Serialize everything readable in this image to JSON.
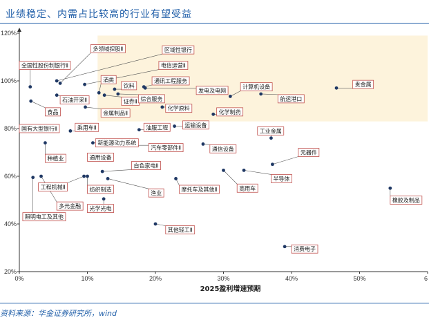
{
  "header": {
    "title": "业绩稳定、内需占比较高的行业有望受益"
  },
  "footer": {
    "source": "资料来源：华金证券研究所，wind"
  },
  "colors": {
    "accent": "#1f5ea8",
    "point": "#1f3864",
    "label_border": "#c0504d",
    "highlight": "#fdf3dc"
  },
  "chart_data": {
    "type": "scatter",
    "title": "",
    "xlabel": "2025盈利增速预期",
    "ylabel": "",
    "xlim": [
      0,
      0.6
    ],
    "ylim": [
      0.2,
      1.2
    ],
    "x_ticks": [
      "0%",
      "10%",
      "20%",
      "30%",
      "40%",
      "50%",
      "6"
    ],
    "y_ticks": [
      "20%",
      "40%",
      "60%",
      "80%",
      "100%",
      "120%"
    ],
    "grid": false,
    "highlight_region": {
      "x": [
        0.115,
        0.6
      ],
      "y": [
        0.83,
        1.19
      ]
    },
    "points": [
      {
        "name": "全国性股份制银行Ⅱ",
        "x": 0.016,
        "y": 0.975,
        "lx": 0.0,
        "ly": 1.065
      },
      {
        "name": "多领域控股Ⅱ",
        "x": 0.06,
        "y": 0.99,
        "lx": 0.105,
        "ly": 1.135
      },
      {
        "name": "区域性银行",
        "x": 0.055,
        "y": 1.0,
        "lx": 0.21,
        "ly": 1.13
      },
      {
        "name": "电信运营Ⅱ",
        "x": 0.096,
        "y": 0.985,
        "lx": 0.205,
        "ly": 1.065
      },
      {
        "name": "酒类",
        "x": 0.117,
        "y": 0.95,
        "lx": 0.12,
        "ly": 1.005
      },
      {
        "name": "饮料",
        "x": 0.14,
        "y": 0.965,
        "lx": 0.15,
        "ly": 0.98
      },
      {
        "name": "通讯工程服务",
        "x": 0.183,
        "y": 0.975,
        "lx": 0.195,
        "ly": 1.0
      },
      {
        "name": "发电及电网",
        "x": 0.185,
        "y": 0.97,
        "lx": 0.26,
        "ly": 0.96
      },
      {
        "name": "计算机设备",
        "x": 0.31,
        "y": 0.935,
        "lx": 0.325,
        "ly": 0.975
      },
      {
        "name": "贵金属",
        "x": 0.466,
        "y": 0.97,
        "lx": 0.49,
        "ly": 0.985
      },
      {
        "name": "石油开采Ⅱ",
        "x": 0.055,
        "y": 0.94,
        "lx": 0.06,
        "ly": 0.92
      },
      {
        "name": "证券Ⅱ",
        "x": 0.125,
        "y": 0.94,
        "lx": 0.15,
        "ly": 0.915
      },
      {
        "name": "综合服务",
        "x": 0.145,
        "y": 0.945,
        "lx": 0.175,
        "ly": 0.925
      },
      {
        "name": "航运港口",
        "x": 0.355,
        "y": 0.945,
        "lx": 0.38,
        "ly": 0.925
      },
      {
        "name": "金属制品Ⅱ",
        "x": 0.097,
        "y": 0.89,
        "lx": 0.12,
        "ly": 0.865
      },
      {
        "name": "化学原料",
        "x": 0.21,
        "y": 0.89,
        "lx": 0.215,
        "ly": 0.885
      },
      {
        "name": "化学制药",
        "x": 0.285,
        "y": 0.86,
        "lx": 0.29,
        "ly": 0.87
      },
      {
        "name": "食品",
        "x": 0.017,
        "y": 0.915,
        "lx": 0.038,
        "ly": 0.87
      },
      {
        "name": "国有大型银行Ⅱ",
        "x": 0.04,
        "y": 0.8,
        "lx": 0.0,
        "ly": 0.8
      },
      {
        "name": "乘用车Ⅱ",
        "x": 0.075,
        "y": 0.79,
        "lx": 0.082,
        "ly": 0.805
      },
      {
        "name": "油服工程",
        "x": 0.176,
        "y": 0.795,
        "lx": 0.183,
        "ly": 0.805
      },
      {
        "name": "运输设备",
        "x": 0.228,
        "y": 0.81,
        "lx": 0.24,
        "ly": 0.815
      },
      {
        "name": "工业金属",
        "x": 0.37,
        "y": 0.76,
        "lx": 0.35,
        "ly": 0.79
      },
      {
        "name": "新能源动力系统",
        "x": 0.108,
        "y": 0.74,
        "lx": 0.112,
        "ly": 0.74
      },
      {
        "name": "汽车零部件Ⅱ",
        "x": 0.17,
        "y": 0.73,
        "lx": 0.19,
        "ly": 0.72
      },
      {
        "name": "通信设备",
        "x": 0.27,
        "y": 0.735,
        "lx": 0.28,
        "ly": 0.715
      },
      {
        "name": "元器件",
        "x": 0.372,
        "y": 0.65,
        "lx": 0.41,
        "ly": 0.7
      },
      {
        "name": "种植业",
        "x": 0.038,
        "y": 0.74,
        "lx": 0.038,
        "ly": 0.675
      },
      {
        "name": "通用设备",
        "x": 0.107,
        "y": 0.68,
        "lx": 0.1,
        "ly": 0.68
      },
      {
        "name": "白色家电Ⅱ",
        "x": 0.122,
        "y": 0.62,
        "lx": 0.165,
        "ly": 0.645
      },
      {
        "name": "工程机械Ⅱ",
        "x": 0.095,
        "y": 0.6,
        "lx": 0.028,
        "ly": 0.555
      },
      {
        "name": "纺织制造",
        "x": 0.1,
        "y": 0.6,
        "lx": 0.1,
        "ly": 0.545
      },
      {
        "name": "摩托车及其他Ⅱ",
        "x": 0.23,
        "y": 0.59,
        "lx": 0.235,
        "ly": 0.545
      },
      {
        "name": "商用车",
        "x": 0.3,
        "y": 0.625,
        "lx": 0.32,
        "ly": 0.55
      },
      {
        "name": "半导体",
        "x": 0.33,
        "y": 0.625,
        "lx": 0.37,
        "ly": 0.59
      },
      {
        "name": "多元金融",
        "x": 0.032,
        "y": 0.6,
        "lx": 0.055,
        "ly": 0.475
      },
      {
        "name": "渔业",
        "x": 0.13,
        "y": 0.59,
        "lx": 0.19,
        "ly": 0.53
      },
      {
        "name": "光学光电",
        "x": 0.124,
        "y": 0.505,
        "lx": 0.1,
        "ly": 0.465
      },
      {
        "name": "照明电工及其他",
        "x": 0.02,
        "y": 0.595,
        "lx": 0.005,
        "ly": 0.43
      },
      {
        "name": "橡胶及制品",
        "x": 0.545,
        "y": 0.55,
        "lx": 0.545,
        "ly": 0.5
      },
      {
        "name": "其他轻工Ⅱ",
        "x": 0.2,
        "y": 0.4,
        "lx": 0.215,
        "ly": 0.375
      },
      {
        "name": "消费电子",
        "x": 0.39,
        "y": 0.305,
        "lx": 0.4,
        "ly": 0.295
      }
    ]
  }
}
